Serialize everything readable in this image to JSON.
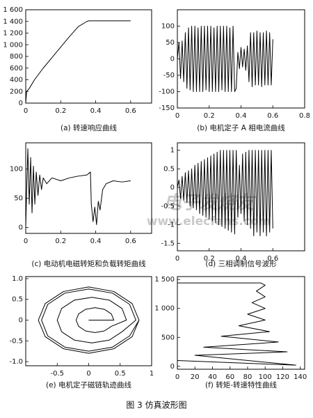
{
  "figure_caption": "图 3   仿真波形图",
  "watermark": {
    "logo": "电子发烧友",
    "url": "www.elecfans.com"
  },
  "chart_data": [
    {
      "type": "line",
      "caption": "(a) 转速响应曲线",
      "color": "#000000",
      "x": [
        0,
        0.005,
        0.02,
        0.05,
        0.1,
        0.15,
        0.2,
        0.25,
        0.3,
        0.35,
        0.36,
        0.4,
        0.5,
        0.6
      ],
      "values": [
        0,
        200,
        250,
        400,
        600,
        780,
        960,
        1140,
        1310,
        1400,
        1410,
        1410,
        1410,
        1410
      ],
      "xlim": [
        0,
        0.72
      ],
      "xticks": [
        0,
        0.2,
        0.4,
        0.6
      ],
      "ylim": [
        0,
        1600
      ],
      "yticks": [
        0,
        200,
        400,
        600,
        800,
        {
          "value": 1000,
          "label": "1 000"
        },
        {
          "value": 1200,
          "label": "1 200"
        },
        {
          "value": 1400,
          "label": "1 400"
        },
        {
          "value": 1600,
          "label": "1 600"
        }
      ]
    },
    {
      "type": "line",
      "caption": "(b) 电机定子 A 相电流曲线",
      "color": "#000000",
      "x": [
        0,
        0.01,
        0.02,
        0.03,
        0.04,
        0.05,
        0.06,
        0.07,
        0.08,
        0.09,
        0.1,
        0.11,
        0.12,
        0.13,
        0.14,
        0.15,
        0.16,
        0.17,
        0.18,
        0.19,
        0.2,
        0.21,
        0.22,
        0.23,
        0.24,
        0.25,
        0.26,
        0.27,
        0.28,
        0.29,
        0.3,
        0.31,
        0.32,
        0.33,
        0.34,
        0.35,
        0.36,
        0.37,
        0.38,
        0.39,
        0.4,
        0.41,
        0.42,
        0.43,
        0.44,
        0.45,
        0.46,
        0.47,
        0.48,
        0.49,
        0.5,
        0.51,
        0.52,
        0.53,
        0.54,
        0.55,
        0.56,
        0.57,
        0.58,
        0.59,
        0.6
      ],
      "values": [
        0,
        50,
        -60,
        55,
        -70,
        80,
        -90,
        95,
        -95,
        100,
        -100,
        100,
        -100,
        95,
        -100,
        100,
        -100,
        100,
        -95,
        100,
        -100,
        100,
        -100,
        95,
        -100,
        100,
        -100,
        100,
        -95,
        100,
        -100,
        100,
        -100,
        95,
        -100,
        100,
        -100,
        -90,
        20,
        -30,
        35,
        -25,
        30,
        -35,
        40,
        -70,
        80,
        -85,
        80,
        -80,
        85,
        -80,
        80,
        -85,
        80,
        -80,
        85,
        -80,
        80,
        -80,
        60
      ],
      "xlim": [
        0,
        0.8
      ],
      "xticks": [
        0,
        0.2,
        0.4,
        0.6,
        0.8
      ],
      "ylim": [
        -150,
        150
      ],
      "yticks": [
        -150,
        -100,
        -50,
        0,
        50,
        100
      ]
    },
    {
      "type": "line",
      "caption": "(c) 电动机电磁转矩和负载转矩曲线",
      "color": "#000000",
      "x": [
        0,
        0.005,
        0.012,
        0.02,
        0.028,
        0.036,
        0.044,
        0.052,
        0.06,
        0.07,
        0.08,
        0.09,
        0.1,
        0.12,
        0.15,
        0.2,
        0.25,
        0.3,
        0.35,
        0.37,
        0.375,
        0.385,
        0.395,
        0.405,
        0.415,
        0.425,
        0.44,
        0.46,
        0.5,
        0.55,
        0.6
      ],
      "values": [
        0,
        60,
        135,
        40,
        120,
        25,
        105,
        40,
        95,
        55,
        90,
        65,
        85,
        75,
        85,
        80,
        85,
        88,
        90,
        95,
        40,
        10,
        35,
        5,
        45,
        30,
        65,
        75,
        80,
        78,
        80
      ],
      "xlim": [
        0,
        0.72
      ],
      "xticks": [
        0,
        0.2,
        0.4,
        0.6
      ],
      "ylim": [
        -10,
        145
      ],
      "yticks": [
        0,
        50,
        100
      ]
    },
    {
      "type": "line",
      "caption": "(d) 三相调制信号波形",
      "color": "#000000",
      "x": [
        0,
        0.01,
        0.02,
        0.03,
        0.04,
        0.05,
        0.06,
        0.07,
        0.08,
        0.09,
        0.1,
        0.11,
        0.12,
        0.13,
        0.14,
        0.15,
        0.16,
        0.17,
        0.18,
        0.19,
        0.2,
        0.21,
        0.22,
        0.23,
        0.24,
        0.25,
        0.26,
        0.27,
        0.28,
        0.29,
        0.3,
        0.31,
        0.32,
        0.33,
        0.34,
        0.35,
        0.36,
        0.37,
        0.38,
        0.39,
        0.4,
        0.41,
        0.42,
        0.43,
        0.44,
        0.45,
        0.46,
        0.47,
        0.48,
        0.49,
        0.5,
        0.51,
        0.52,
        0.53,
        0.54,
        0.55,
        0.56,
        0.57,
        0.58,
        0.59,
        0.6
      ],
      "values": [
        0,
        0.2,
        -0.3,
        0.3,
        -0.35,
        0.4,
        -0.4,
        0.45,
        -0.5,
        0.5,
        -0.55,
        0.6,
        -0.6,
        0.65,
        -0.7,
        0.7,
        -0.75,
        0.75,
        -0.8,
        0.8,
        -0.85,
        0.85,
        -0.9,
        0.9,
        -0.95,
        0.95,
        -1,
        1,
        -1.05,
        1,
        -1.1,
        1,
        -1.15,
        1,
        -1.2,
        1,
        -1.25,
        1,
        -0.8,
        0.6,
        -0.7,
        0.9,
        -0.9,
        0.95,
        -1,
        1,
        -1.1,
        1,
        -1.3,
        1,
        -1.2,
        1,
        -1.3,
        1,
        -1.2,
        1,
        -1.3,
        1,
        -1.2,
        1,
        -1.1
      ],
      "xlim": [
        0,
        0.8
      ],
      "xticks": [
        0,
        0.2,
        0.4,
        0.6
      ],
      "ylim": [
        -1.7,
        1.2
      ],
      "yticks": [
        -1.5,
        -1,
        -0.5,
        0,
        0.5,
        1
      ]
    },
    {
      "type": "line",
      "caption": "(e) 电机定子磁链轨迹曲线",
      "color": "#000000",
      "x": [
        0,
        0.4,
        0.36,
        0.25,
        0.1,
        -0.05,
        -0.16,
        -0.2,
        -0.16,
        -0.05,
        0.1,
        0.25,
        0.36,
        0.6,
        0.53,
        0.33,
        0.05,
        -0.23,
        -0.43,
        -0.5,
        -0.43,
        -0.23,
        0.05,
        0.33,
        0.53,
        0.75,
        0.65,
        0.38,
        0,
        -0.38,
        -0.65,
        -0.75,
        -0.65,
        -0.38,
        0,
        0.38,
        0.65,
        0.8,
        0.69,
        0.4,
        0,
        -0.4,
        -0.69,
        -0.8,
        -0.69,
        -0.4,
        0,
        0.4,
        0.69,
        0.8
      ],
      "values": [
        0,
        0,
        0.15,
        0.26,
        0.3,
        0.26,
        0.15,
        0,
        -0.15,
        -0.26,
        -0.3,
        -0.26,
        -0.15,
        0,
        0.28,
        0.48,
        0.55,
        0.48,
        0.28,
        0,
        -0.28,
        -0.48,
        -0.55,
        -0.48,
        -0.28,
        0,
        0.38,
        0.65,
        0.75,
        0.65,
        0.38,
        0,
        -0.38,
        -0.65,
        -0.75,
        -0.65,
        -0.38,
        0,
        0.4,
        0.69,
        0.8,
        0.69,
        0.4,
        0,
        -0.4,
        -0.69,
        -0.8,
        -0.69,
        -0.4,
        0
      ],
      "xlim": [
        -1,
        1
      ],
      "xticks": [
        -0.5,
        0,
        0.5,
        1
      ],
      "ylim": [
        -1.1,
        1.05
      ],
      "yticks": [
        {
          "value": -1,
          "label": "-1.0"
        },
        -0.5,
        0,
        0.5,
        {
          "value": 1,
          "label": "1.0"
        }
      ]
    },
    {
      "type": "line",
      "caption": "(f) 转矩-转速特性曲线",
      "color": "#000000",
      "x": [
        0,
        135,
        20,
        125,
        30,
        115,
        50,
        105,
        70,
        100,
        80,
        100,
        85,
        100,
        90,
        100,
        95,
        0
      ],
      "values": [
        100,
        20,
        190,
        250,
        330,
        420,
        520,
        600,
        700,
        800,
        900,
        1000,
        1100,
        1200,
        1300,
        1400,
        1440,
        1440
      ],
      "xlim": [
        0,
        145
      ],
      "xticks": [
        0,
        20,
        40,
        60,
        80,
        100,
        120,
        140
      ],
      "ylim": [
        -50,
        1550
      ],
      "yticks": [
        0,
        500,
        {
          "value": 1000,
          "label": "1 000"
        },
        {
          "value": 1500,
          "label": "1 500"
        }
      ]
    }
  ]
}
